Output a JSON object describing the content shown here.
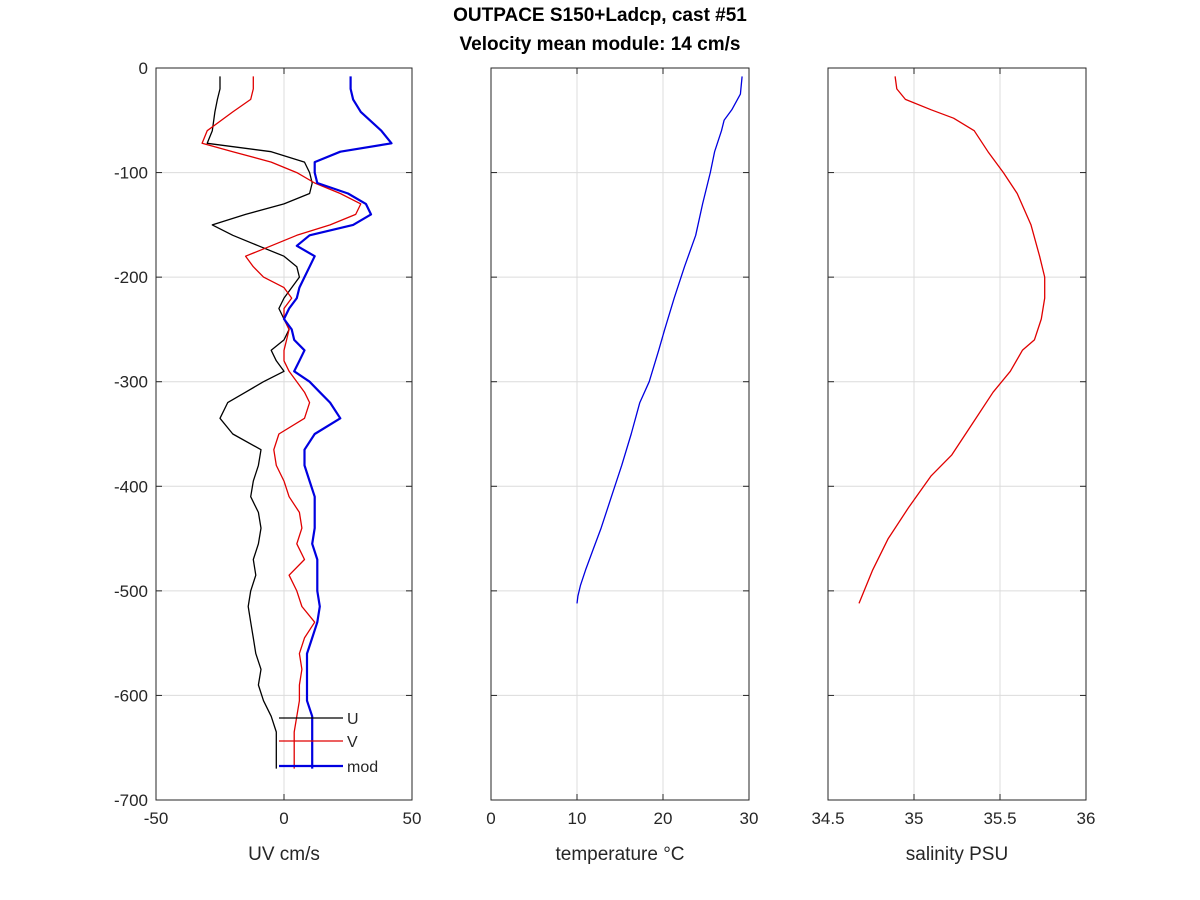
{
  "figure": {
    "title_line1": "OUTPACE S150+Ladcp, cast #51",
    "title_line2": "Velocity mean module:  14 cm/s"
  },
  "chart_data": [
    {
      "type": "line",
      "xlabel": "UV cm/s",
      "ylabel": "",
      "xlim": [
        -50,
        50
      ],
      "ylim": [
        -700,
        0
      ],
      "xticks": [
        -50,
        0,
        50
      ],
      "yticks": [
        0,
        -100,
        -200,
        -300,
        -400,
        -500,
        -600,
        -700
      ],
      "grid": true,
      "legend": {
        "placement": "bottom-right",
        "entries": [
          "U",
          "V",
          "mod"
        ]
      },
      "series": [
        {
          "name": "U",
          "color": "#000000",
          "y": [
            -8,
            -20,
            -30,
            -42,
            -60,
            -72,
            -80,
            -90,
            -100,
            -110,
            -120,
            -130,
            -140,
            -150,
            -160,
            -170,
            -180,
            -190,
            -200,
            -210,
            -220,
            -230,
            -240,
            -250,
            -260,
            -270,
            -280,
            -290,
            -300,
            -310,
            -320,
            -335,
            -350,
            -365,
            -380,
            -395,
            -410,
            -425,
            -440,
            -455,
            -470,
            -485,
            -500,
            -515,
            -530,
            -545,
            -560,
            -575,
            -590,
            -605,
            -620,
            -635,
            -650,
            -670
          ],
          "values": [
            -25,
            -25,
            -26,
            -27,
            -28,
            -30,
            -5,
            8,
            10,
            11,
            10,
            0,
            -15,
            -28,
            -20,
            -10,
            0,
            5,
            6,
            3,
            0,
            -2,
            0,
            2,
            0,
            -5,
            -3,
            0,
            -8,
            -15,
            -22,
            -25,
            -20,
            -9,
            -10,
            -12,
            -13,
            -10,
            -9,
            -10,
            -12,
            -11,
            -13,
            -14,
            -13,
            -12,
            -11,
            -9,
            -10,
            -8,
            -5,
            -3,
            -3,
            -3
          ]
        },
        {
          "name": "V",
          "color": "#e00000",
          "y": [
            -8,
            -20,
            -30,
            -42,
            -60,
            -72,
            -80,
            -90,
            -100,
            -110,
            -120,
            -130,
            -140,
            -150,
            -160,
            -170,
            -180,
            -190,
            -200,
            -210,
            -220,
            -230,
            -240,
            -250,
            -260,
            -270,
            -280,
            -290,
            -300,
            -310,
            -320,
            -335,
            -350,
            -365,
            -380,
            -395,
            -410,
            -425,
            -440,
            -455,
            -470,
            -485,
            -500,
            -515,
            -530,
            -545,
            -560,
            -575,
            -590,
            -605,
            -620,
            -635,
            -650,
            -670
          ],
          "values": [
            -12,
            -12,
            -13,
            -20,
            -30,
            -32,
            -20,
            -5,
            5,
            12,
            22,
            30,
            28,
            18,
            5,
            -5,
            -15,
            -12,
            -8,
            0,
            3,
            0,
            0,
            2,
            1,
            0,
            0,
            2,
            5,
            8,
            10,
            8,
            -2,
            -4,
            -3,
            0,
            2,
            6,
            7,
            5,
            8,
            2,
            5,
            7,
            12,
            8,
            6,
            7,
            6,
            6,
            5,
            4,
            4,
            4
          ]
        },
        {
          "name": "mod",
          "color": "#0000e0",
          "y": [
            -8,
            -20,
            -30,
            -42,
            -60,
            -72,
            -80,
            -90,
            -100,
            -110,
            -120,
            -130,
            -140,
            -150,
            -160,
            -170,
            -180,
            -190,
            -200,
            -210,
            -220,
            -230,
            -240,
            -250,
            -260,
            -270,
            -280,
            -290,
            -300,
            -310,
            -320,
            -335,
            -350,
            -365,
            -380,
            -395,
            -410,
            -425,
            -440,
            -455,
            -470,
            -485,
            -500,
            -515,
            -530,
            -545,
            -560,
            -575,
            -590,
            -605,
            -620,
            -635,
            -650,
            -670
          ],
          "values": [
            26,
            26,
            27,
            30,
            38,
            42,
            22,
            12,
            12,
            13,
            25,
            32,
            34,
            27,
            10,
            5,
            12,
            10,
            8,
            6,
            5,
            2,
            0,
            3,
            4,
            8,
            6,
            4,
            10,
            14,
            18,
            22,
            12,
            8,
            8,
            10,
            12,
            12,
            12,
            11,
            13,
            13,
            13,
            14,
            13,
            11,
            9,
            9,
            9,
            9,
            11,
            11,
            11,
            11
          ]
        }
      ]
    },
    {
      "type": "line",
      "xlabel": "temperature °C",
      "ylabel": "",
      "xlim": [
        0,
        30
      ],
      "ylim": [
        -700,
        0
      ],
      "xticks": [
        0,
        10,
        20,
        30
      ],
      "yticks": [
        0,
        -100,
        -200,
        -300,
        -400,
        -500,
        -600,
        -700
      ],
      "grid": true,
      "series": [
        {
          "name": "",
          "color": "#0000e0",
          "y": [
            -8,
            -25,
            -40,
            -50,
            -60,
            -80,
            -100,
            -130,
            -160,
            -190,
            -220,
            -250,
            -270,
            -300,
            -320,
            -350,
            -380,
            -410,
            -440,
            -460,
            -480,
            -495,
            -505,
            -512
          ],
          "values": [
            29.2,
            29.0,
            28.0,
            27.1,
            26.8,
            26.0,
            25.5,
            24.6,
            23.8,
            22.5,
            21.3,
            20.2,
            19.5,
            18.4,
            17.3,
            16.3,
            15.2,
            14.0,
            12.8,
            11.9,
            11.0,
            10.4,
            10.1,
            10.0
          ]
        }
      ]
    },
    {
      "type": "line",
      "xlabel": "salinity PSU",
      "ylabel": "",
      "xlim": [
        34.5,
        36
      ],
      "ylim": [
        -700,
        0
      ],
      "xticks": [
        34.5,
        35,
        35.5,
        36
      ],
      "xtick_labels": [
        "34.5",
        "35",
        "35.5",
        "36"
      ],
      "yticks": [
        0,
        -100,
        -200,
        -300,
        -400,
        -500,
        -600,
        -700
      ],
      "grid": true,
      "series": [
        {
          "name": "",
          "color": "#e00000",
          "y": [
            -8,
            -20,
            -30,
            -40,
            -48,
            -60,
            -80,
            -100,
            -120,
            -150,
            -180,
            -200,
            -220,
            -240,
            -260,
            -270,
            -290,
            -310,
            -340,
            -370,
            -390,
            -420,
            -450,
            -480,
            -500,
            -512
          ],
          "values": [
            34.89,
            34.9,
            34.95,
            35.1,
            35.23,
            35.35,
            35.43,
            35.52,
            35.6,
            35.68,
            35.73,
            35.76,
            35.76,
            35.74,
            35.7,
            35.63,
            35.56,
            35.46,
            35.34,
            35.22,
            35.1,
            34.97,
            34.85,
            34.76,
            34.71,
            34.68
          ]
        }
      ]
    }
  ]
}
